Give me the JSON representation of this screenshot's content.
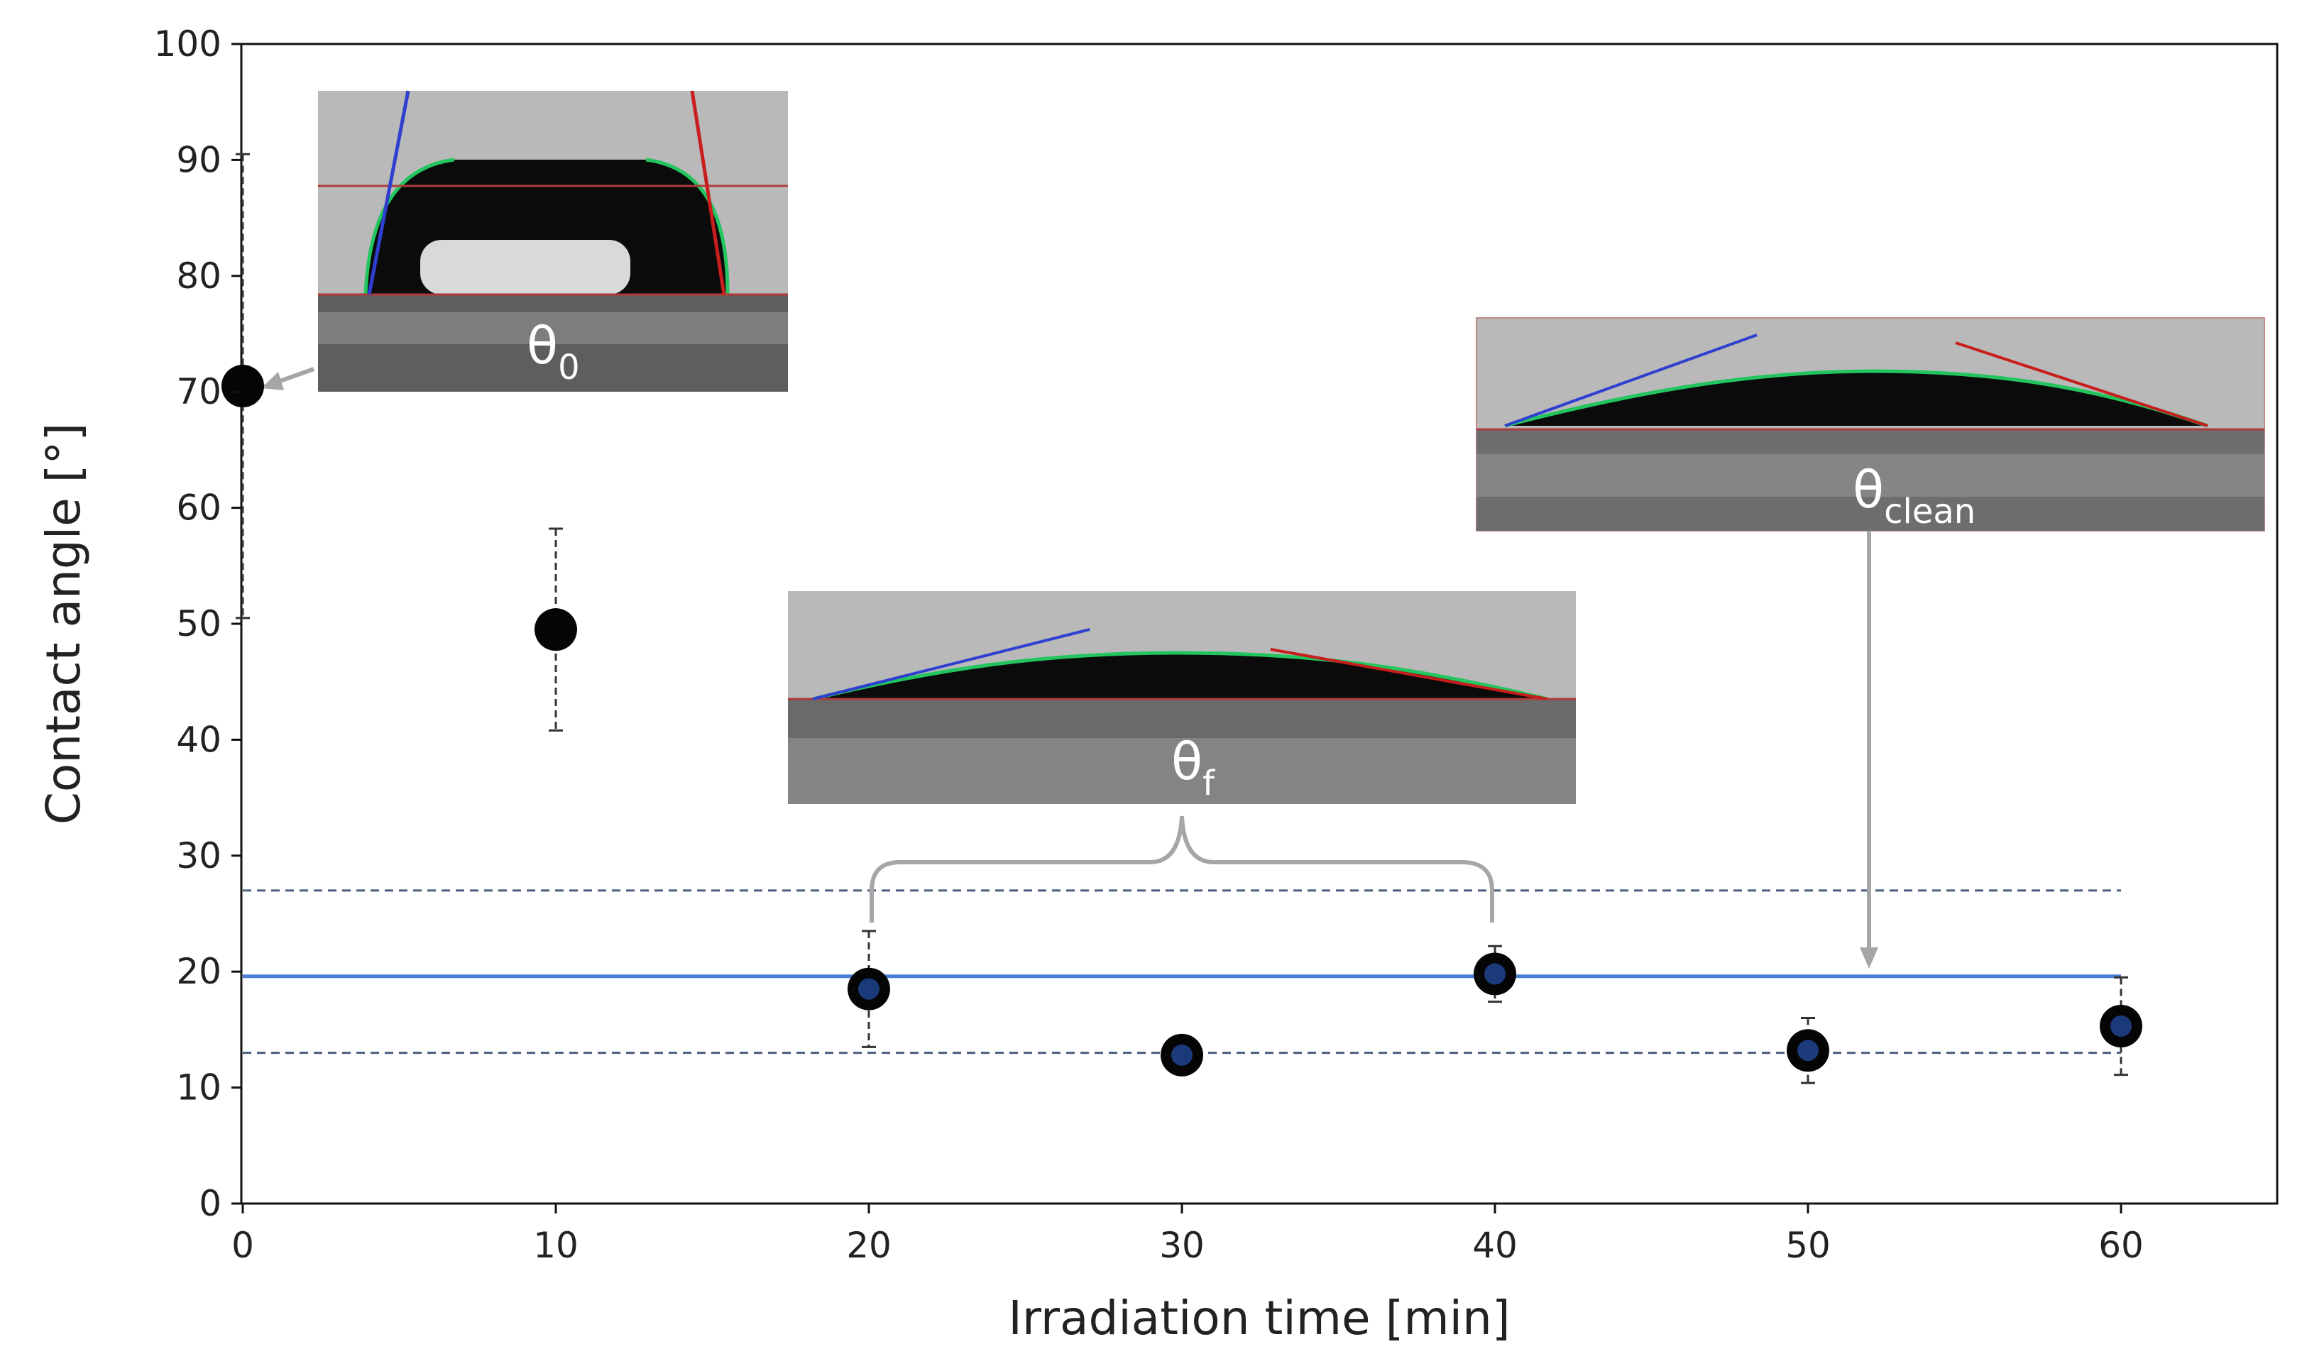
{
  "chart_data": {
    "type": "scatter",
    "title": "",
    "xlabel": "Irradiation time [min]",
    "ylabel": "Contact angle [°]",
    "xlim": [
      0,
      65
    ],
    "ylim": [
      0,
      100
    ],
    "xticks": [
      0,
      10,
      20,
      30,
      40,
      50,
      60
    ],
    "yticks": [
      0,
      10,
      20,
      30,
      40,
      50,
      60,
      70,
      80,
      90,
      100
    ],
    "grid": false,
    "points": [
      {
        "x": 0,
        "y": 70.5,
        "err_low": 20,
        "err_high": 20,
        "style": "black"
      },
      {
        "x": 10,
        "y": 49.5,
        "err_low": 8.7,
        "err_high": 8.7,
        "style": "black"
      },
      {
        "x": 20,
        "y": 18.5,
        "err_low": 5,
        "err_high": 5,
        "style": "blue-core"
      },
      {
        "x": 30,
        "y": 12.8,
        "err_low": 0,
        "err_high": 0,
        "style": "blue-core"
      },
      {
        "x": 40,
        "y": 19.8,
        "err_low": 2.4,
        "err_high": 2.4,
        "style": "blue-core"
      },
      {
        "x": 50,
        "y": 13.2,
        "err_low": 2.8,
        "err_high": 2.8,
        "style": "blue-core"
      },
      {
        "x": 60,
        "y": 15.3,
        "err_low": 4.2,
        "err_high": 4.2,
        "style": "blue-core"
      }
    ],
    "reference_lines": [
      {
        "y": 19.6,
        "style": "solid",
        "color": "#4a7fd4"
      },
      {
        "y": 27.0,
        "style": "dashed",
        "color": "#4a5e7e"
      },
      {
        "y": 13.0,
        "style": "dashed",
        "color": "#4a5e7e"
      }
    ],
    "insets": [
      {
        "label": "θ",
        "subscript": "0",
        "shape": "high-droplet"
      },
      {
        "label": "θ",
        "subscript": "f",
        "shape": "flat-droplet"
      },
      {
        "label": "θ",
        "subscript": "clean",
        "shape": "flat-droplet"
      }
    ]
  },
  "colors": {
    "marker": "#050505",
    "marker_core": "#1a3a7a",
    "mean_line": "#4a7fd4",
    "dashed_line": "#4a5e7e",
    "annotation": "#a6a6a6"
  }
}
